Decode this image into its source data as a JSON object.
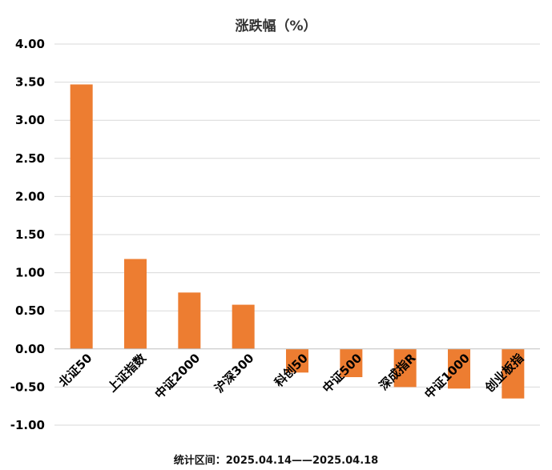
{
  "chart_data": {
    "type": "bar",
    "title": "涨跌幅（%）",
    "footnote": "统计区间：2025.04.14——2025.04.18",
    "categories": [
      "北证50",
      "上证指数",
      "中证2000",
      "沪深300",
      "科创50",
      "中证500",
      "深成指R",
      "中证1000",
      "创业板指"
    ],
    "values": [
      3.47,
      1.18,
      0.74,
      0.58,
      -0.31,
      -0.37,
      -0.5,
      -0.52,
      -0.65
    ],
    "yticks": [
      "4.00",
      "3.50",
      "3.00",
      "2.50",
      "2.00",
      "1.50",
      "1.00",
      "0.50",
      "0.00",
      "-0.50",
      "-1.00"
    ],
    "ylim": [
      -1.0,
      4.0
    ],
    "grid": true,
    "bar_color": "#ED7D31",
    "grid_color": "#D9D9D9",
    "axis_color": "#BFBFBF"
  }
}
